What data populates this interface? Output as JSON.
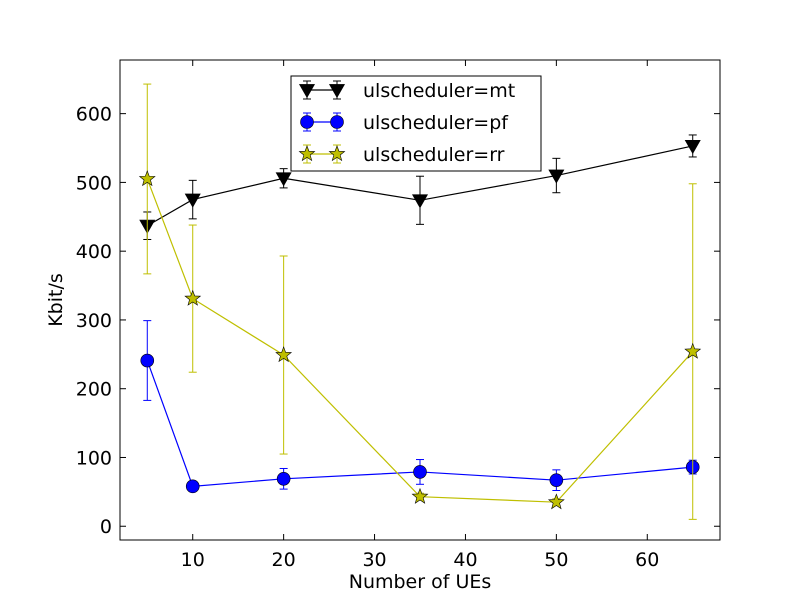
{
  "chart_data": {
    "type": "line",
    "title": "",
    "xlabel": "Number of UEs",
    "ylabel": "Kbit/s",
    "xlim": [
      2,
      68
    ],
    "ylim": [
      -20,
      678
    ],
    "xticks": [
      10,
      20,
      30,
      40,
      50,
      60
    ],
    "yticks": [
      0,
      100,
      200,
      300,
      400,
      500,
      600
    ],
    "grid": false,
    "legend_position": "top-center",
    "series": [
      {
        "name": "ulscheduler=mt",
        "color": "#000000",
        "marker": "triangle-down",
        "x": [
          5,
          10,
          20,
          35,
          50,
          65
        ],
        "y": [
          437,
          475,
          506,
          474,
          510,
          553
        ],
        "err": [
          20,
          28,
          14,
          35,
          25,
          16
        ]
      },
      {
        "name": "ulscheduler=pf",
        "color": "#0000ff",
        "marker": "circle",
        "x": [
          5,
          10,
          20,
          35,
          50,
          65
        ],
        "y": [
          241,
          58,
          69,
          79,
          67,
          86
        ],
        "err": [
          58,
          5,
          15,
          18,
          15,
          10
        ]
      },
      {
        "name": "ulscheduler=rr",
        "color": "#bfbf00",
        "marker": "star",
        "x": [
          5,
          10,
          20,
          35,
          50,
          65
        ],
        "y": [
          505,
          331,
          249,
          43,
          35,
          254
        ],
        "err": [
          138,
          107,
          144,
          5,
          5,
          244
        ]
      }
    ]
  }
}
